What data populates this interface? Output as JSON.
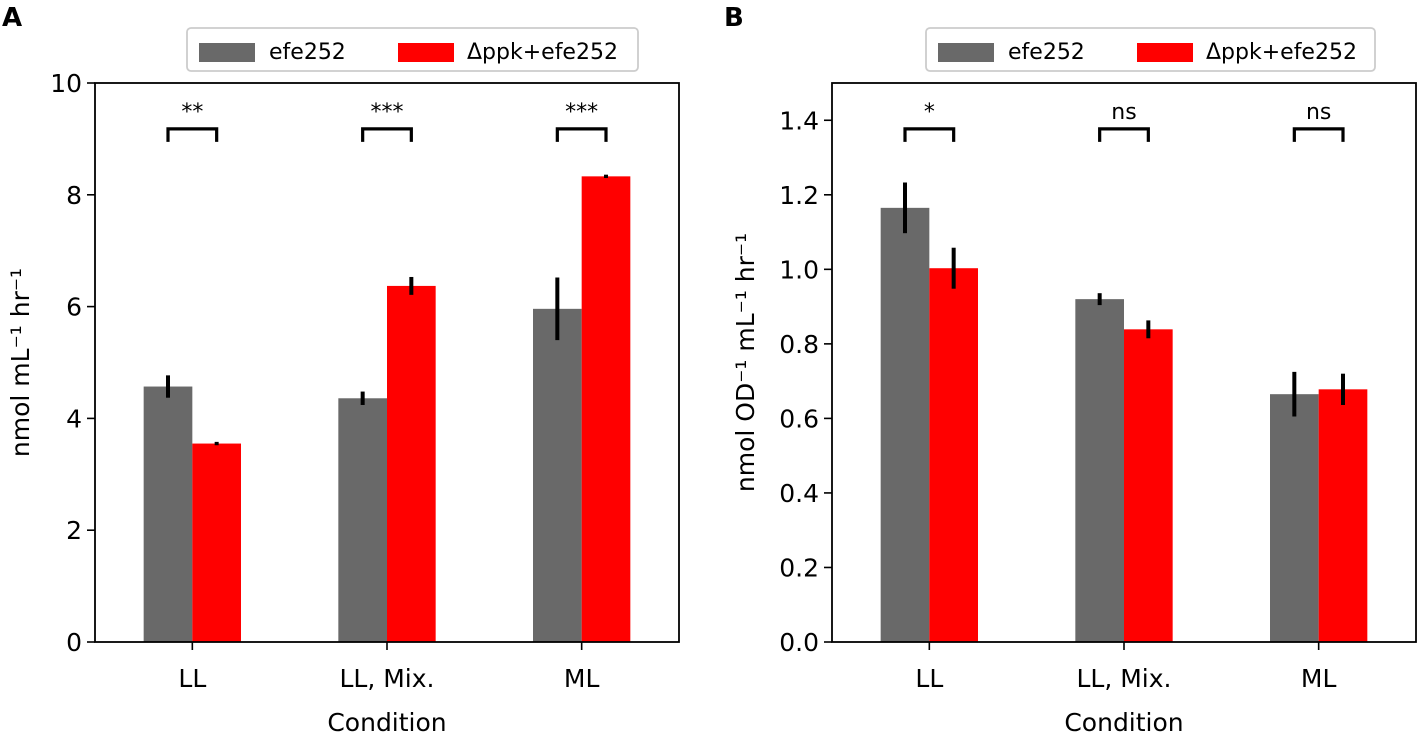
{
  "panel_labels": [
    "A",
    "B"
  ],
  "chart_data": [
    {
      "type": "bar",
      "panel": "A",
      "title": "",
      "xlabel": "Condition",
      "ylabel": "nmol mL⁻¹ hr⁻¹",
      "ylim": [
        0,
        10
      ],
      "yticks": [
        0,
        2,
        4,
        6,
        8,
        10
      ],
      "ytick_labels": [
        "0",
        "2",
        "4",
        "6",
        "8",
        "10"
      ],
      "grid": false,
      "legend_position": "top-center",
      "categories": [
        "LL",
        "LL, Mix.",
        "ML"
      ],
      "series": [
        {
          "name": "efe252",
          "color": "#696969",
          "values": [
            4.57,
            4.36,
            5.96
          ],
          "errors": [
            0.2,
            0.12,
            0.56
          ]
        },
        {
          "name": "Δppk+efe252",
          "color": "#ff0000",
          "values": [
            3.55,
            6.37,
            8.33
          ],
          "errors": [
            0.03,
            0.16,
            0.03
          ]
        }
      ],
      "significance": [
        {
          "category": "LL",
          "label": "**",
          "y": 9.0
        },
        {
          "category": "LL, Mix.",
          "label": "***",
          "y": 9.0
        },
        {
          "category": "ML",
          "label": "***",
          "y": 9.0
        }
      ]
    },
    {
      "type": "bar",
      "panel": "B",
      "title": "",
      "xlabel": "Condition",
      "ylabel": "nmol OD⁻¹ mL⁻¹ hr⁻¹",
      "ylim": [
        0,
        1.5
      ],
      "yticks": [
        0,
        0.2,
        0.4,
        0.6,
        0.8,
        1.0,
        1.2,
        1.4
      ],
      "ytick_labels": [
        "0.0",
        "0.2",
        "0.4",
        "0.6",
        "0.8",
        "1.0",
        "1.2",
        "1.4"
      ],
      "grid": false,
      "legend_position": "top-center",
      "categories": [
        "LL",
        "LL, Mix.",
        "ML"
      ],
      "series": [
        {
          "name": "efe252",
          "color": "#696969",
          "values": [
            1.165,
            0.92,
            0.665
          ],
          "errors": [
            0.068,
            0.016,
            0.06
          ]
        },
        {
          "name": "Δppk+efe252",
          "color": "#ff0000",
          "values": [
            1.003,
            0.839,
            0.678
          ],
          "errors": [
            0.055,
            0.024,
            0.042
          ]
        }
      ],
      "significance": [
        {
          "category": "LL",
          "label": "*",
          "y": 1.35
        },
        {
          "category": "LL, Mix.",
          "label": "ns",
          "y": 1.35
        },
        {
          "category": "ML",
          "label": "ns",
          "y": 1.35
        }
      ]
    }
  ]
}
